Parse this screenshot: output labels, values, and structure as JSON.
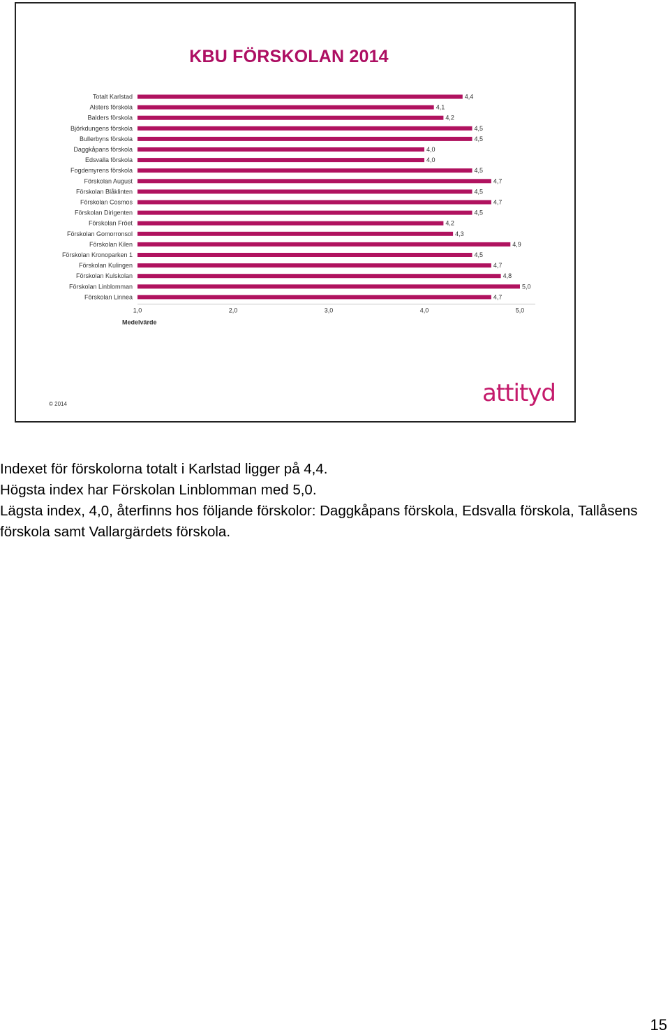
{
  "slide": {
    "title": "KBU FÖRSKOLAN 2014",
    "copyright": "© 2014",
    "logo": "attityd"
  },
  "colors": {
    "bar": "#b0125f",
    "title": "#ad0e62",
    "logo": "#c41a6b"
  },
  "chart_data": {
    "type": "bar",
    "orientation": "horizontal",
    "categories": [
      "Totalt Karlstad",
      "Alsters förskola",
      "Balders förskola",
      "Björkdungens förskola",
      "Bullerbyns förskola",
      "Daggkåpans förskola",
      "Edsvalla förskola",
      "Fogdemyrens förskola",
      "Förskolan August",
      "Förskolan Blåklinten",
      "Förskolan Cosmos",
      "Förskolan Dirigenten",
      "Förskolan Fröet",
      "Förskolan Gomorronsol",
      "Förskolan Kilen",
      "Förskolan Kronoparken 1",
      "Förskolan Kulingen",
      "Förskolan Kulskolan",
      "Förskolan Linblomman",
      "Förskolan Linnea"
    ],
    "values": [
      4.4,
      4.1,
      4.2,
      4.5,
      4.5,
      4.0,
      4.0,
      4.5,
      4.7,
      4.5,
      4.7,
      4.5,
      4.2,
      4.3,
      4.9,
      4.5,
      4.7,
      4.8,
      5.0,
      4.7
    ],
    "value_labels": [
      "4,4",
      "4,1",
      "4,2",
      "4,5",
      "4,5",
      "4,0",
      "4,0",
      "4,5",
      "4,7",
      "4,5",
      "4,7",
      "4,5",
      "4,2",
      "4,3",
      "4,9",
      "4,5",
      "4,7",
      "4,8",
      "5,0",
      "4,7"
    ],
    "xlim": [
      1.0,
      5.0
    ],
    "xticks": [
      1.0,
      2.0,
      3.0,
      4.0,
      5.0
    ],
    "xtick_labels": [
      "1,0",
      "2,0",
      "3,0",
      "4,0",
      "5,0"
    ],
    "xlabel": "Medelvärde",
    "title": "KBU FÖRSKOLAN 2014",
    "grid": false,
    "legend": "none"
  },
  "notes": {
    "line1": "Indexet för förskolorna totalt i Karlstad ligger på 4,4.",
    "line2": "Högsta index har Förskolan Linblomman med 5,0.",
    "line3": "Lägsta index, 4,0, återfinns hos följande förskolor: Daggkåpans förskola, Edsvalla förskola, Tallåsens förskola samt Vallargärdets förskola."
  },
  "page_number": "15"
}
